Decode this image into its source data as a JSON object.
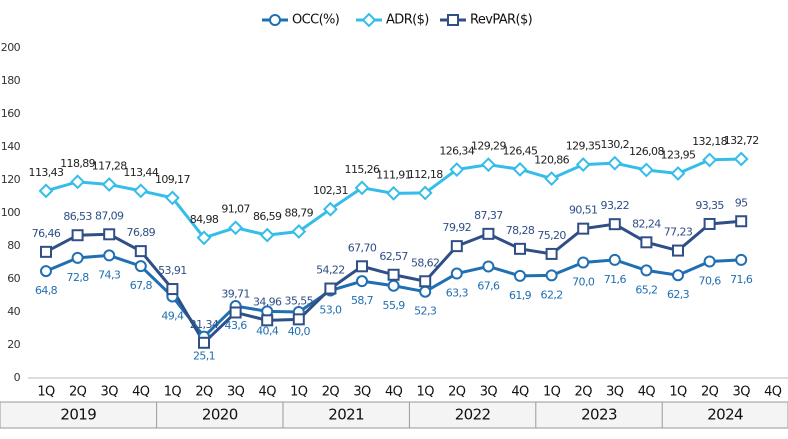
{
  "chart_data": {
    "type": "line",
    "groups": [
      {
        "label": "2019",
        "categories": [
          "1Q",
          "2Q",
          "3Q",
          "4Q"
        ]
      },
      {
        "label": "2020",
        "categories": [
          "1Q",
          "2Q",
          "3Q",
          "4Q"
        ]
      },
      {
        "label": "2021",
        "categories": [
          "1Q",
          "2Q",
          "3Q",
          "4Q"
        ]
      },
      {
        "label": "2022",
        "categories": [
          "1Q",
          "2Q",
          "3Q",
          "4Q"
        ]
      },
      {
        "label": "2023",
        "categories": [
          "1Q",
          "2Q",
          "3Q",
          "4Q"
        ]
      },
      {
        "label": "2024",
        "categories": [
          "1Q",
          "2Q",
          "3Q",
          "4Q"
        ]
      }
    ],
    "series": [
      {
        "name": "OCC(%)",
        "color": "#1f6fb2",
        "marker": "circle",
        "label_position": "below",
        "values": [
          64.8,
          72.8,
          74.3,
          67.8,
          49.4,
          25.1,
          43.6,
          40.4,
          40.0,
          53.0,
          58.7,
          55.9,
          52.3,
          63.3,
          67.6,
          61.9,
          62.2,
          70.0,
          71.6,
          65.2,
          62.3,
          70.6,
          71.6,
          null
        ],
        "value_labels": [
          "64,8",
          "72,8",
          "74,3",
          "67,8",
          "49,4",
          "25,1",
          "43,6",
          "40,4",
          "40,0",
          "53,0",
          "58,7",
          "55,9",
          "52,3",
          "63,3",
          "67,6",
          "61,9",
          "62,2",
          "70,0",
          "71,6",
          "65,2",
          "62,3",
          "70,6",
          "71,6",
          null
        ]
      },
      {
        "name": "ADR($)",
        "color": "#35bde9",
        "marker": "diamond",
        "label_position": "above",
        "values": [
          113.43,
          118.89,
          117.28,
          113.44,
          109.17,
          84.98,
          91.07,
          86.59,
          88.79,
          102.31,
          115.26,
          111.91,
          112.18,
          126.34,
          129.29,
          126.45,
          120.86,
          129.35,
          130.2,
          126.08,
          123.95,
          132.18,
          132.72,
          null
        ],
        "value_labels": [
          "113,43",
          "118,89",
          "117,28",
          "113,44",
          "109,17",
          "84,98",
          "91,07",
          "86,59",
          "88,79",
          "102,31",
          "115,26",
          "111,91",
          "112,18",
          "126,34",
          "129,29",
          "126,45",
          "120,86",
          "129,35",
          "130,2",
          "126,08",
          "123,95",
          "132,18",
          "132,72",
          null
        ]
      },
      {
        "name": "RevPAR($)",
        "color": "#2f4f86",
        "marker": "square",
        "label_position": "above",
        "values": [
          76.46,
          86.53,
          87.09,
          76.89,
          53.91,
          21.34,
          39.71,
          34.96,
          35.55,
          54.22,
          67.7,
          62.57,
          58.62,
          79.92,
          87.37,
          78.28,
          75.2,
          90.51,
          93.22,
          82.24,
          77.23,
          93.35,
          95,
          null
        ],
        "value_labels": [
          "76,46",
          "86,53",
          "87,09",
          "76,89",
          "53,91",
          "21,34",
          "39,71",
          "34,96",
          "35,55",
          "54,22",
          "67,70",
          "62,57",
          "58,62",
          "79,92",
          "87,37",
          "78,28",
          "75,20",
          "90,51",
          "93,22",
          "82,24",
          "77,23",
          "93,35",
          "95",
          null
        ]
      }
    ],
    "ylim": [
      0,
      200
    ],
    "yticks": [
      0,
      20,
      40,
      60,
      80,
      100,
      120,
      140,
      160,
      180,
      200
    ]
  }
}
